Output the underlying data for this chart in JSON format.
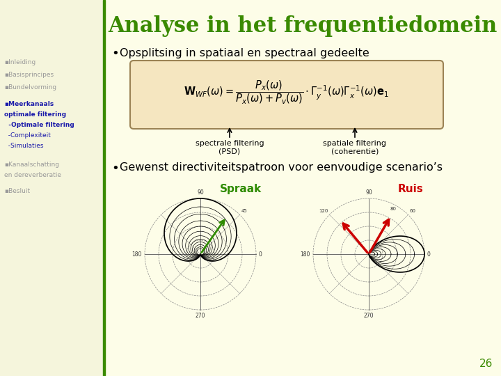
{
  "bg_color": "#FDFDE8",
  "sidebar_color": "#F5F5DC",
  "green_line_color": "#3A8A00",
  "title": "Analyse in het frequentiedomein",
  "title_color": "#3A8A00",
  "title_fontsize": 22,
  "bullet1": "Opsplitsing in spatiaal en spectraal gedeelte",
  "formula_box_color": "#F5E6C0",
  "formula_box_edge": "#9B8355",
  "arrow1_label_line1": "spectrale filtering",
  "arrow1_label_line2": "(PSD)",
  "arrow2_label_line1": "spatiale filtering",
  "arrow2_label_line2": "(coherentie)",
  "bullet2": "Gewenst directiviteitspatroon voor eenvoudige scenario’s",
  "polar_label1": "Spraak",
  "polar_label1_color": "#2E8B00",
  "polar_label2": "Ruis",
  "polar_label2_color": "#CC0000",
  "page_number": "26",
  "page_number_color": "#3A8A00",
  "sidebar_text_color": "#999999",
  "active_text_color": "#1a1aaa",
  "sidebar_items": [
    {
      "text": "▪Inleiding",
      "active": false,
      "bold": false
    },
    {
      "text": "▪Basisprincipes",
      "active": false,
      "bold": false
    },
    {
      "text": "▪Bundelvorming",
      "active": false,
      "bold": false
    },
    {
      "text": "▪Meerkanaals",
      "active": true,
      "bold": true
    },
    {
      "text": "optimale filtering",
      "active": true,
      "bold": true
    },
    {
      "text": "  -Optimale filtering",
      "active": true,
      "bold": true
    },
    {
      "text": "  -Complexiteit",
      "active": true,
      "bold": false
    },
    {
      "text": "  -Simulaties",
      "active": true,
      "bold": false
    },
    {
      "text": "▪Kanaalschatting",
      "active": false,
      "bold": false
    },
    {
      "text": "en dereverberatie",
      "active": false,
      "bold": false
    },
    {
      "text": "▪Besluit",
      "active": false,
      "bold": false
    }
  ],
  "sidebar_y_positions": [
    455,
    437,
    419,
    395,
    380,
    365,
    350,
    335,
    308,
    293,
    270
  ]
}
